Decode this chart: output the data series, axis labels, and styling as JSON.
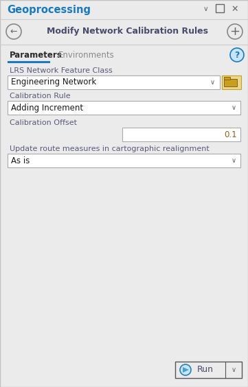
{
  "bg_color": "#ebebeb",
  "white": "#ffffff",
  "title_text": "Geoprocessing",
  "title_color": "#1a7abf",
  "panel_title": "Modify Network Calibration Rules",
  "panel_title_color": "#4a4a6a",
  "tab1": "Parameters",
  "tab2": "Environments",
  "tab_active_color": "#2a2a2a",
  "tab_inactive_color": "#888888",
  "tab_underline_color": "#1a7abf",
  "label_color": "#5a5a7a",
  "label1": "LRS Network Feature Class",
  "dd1_value": "Engineering Network",
  "label2": "Calibration Rule",
  "dd2_value": "Adding Increment",
  "label3": "Calibration Offset",
  "inp3_value": "0.1",
  "inp3_color": "#8a6020",
  "label4": "Update route measures in cartographic realignment",
  "dd4_value": "As is",
  "dd_border": "#aaaaaa",
  "dd_text_color": "#1a1a1a",
  "arrow_color": "#666666",
  "icon_border": "#888888",
  "folder_body": "#c8a020",
  "folder_bg": "#e8d890",
  "help_bg": "#c8e4f8",
  "help_border": "#1a7abf",
  "help_text": "#1a7abf",
  "run_border": "#555555",
  "run_text_color": "#4a4a6a",
  "play_fill": "#4aa0d0",
  "play_border": "#2a80b0",
  "ctrl_color": "#666666",
  "separator_color": "#cccccc",
  "outer_border": "#c0c0c0"
}
